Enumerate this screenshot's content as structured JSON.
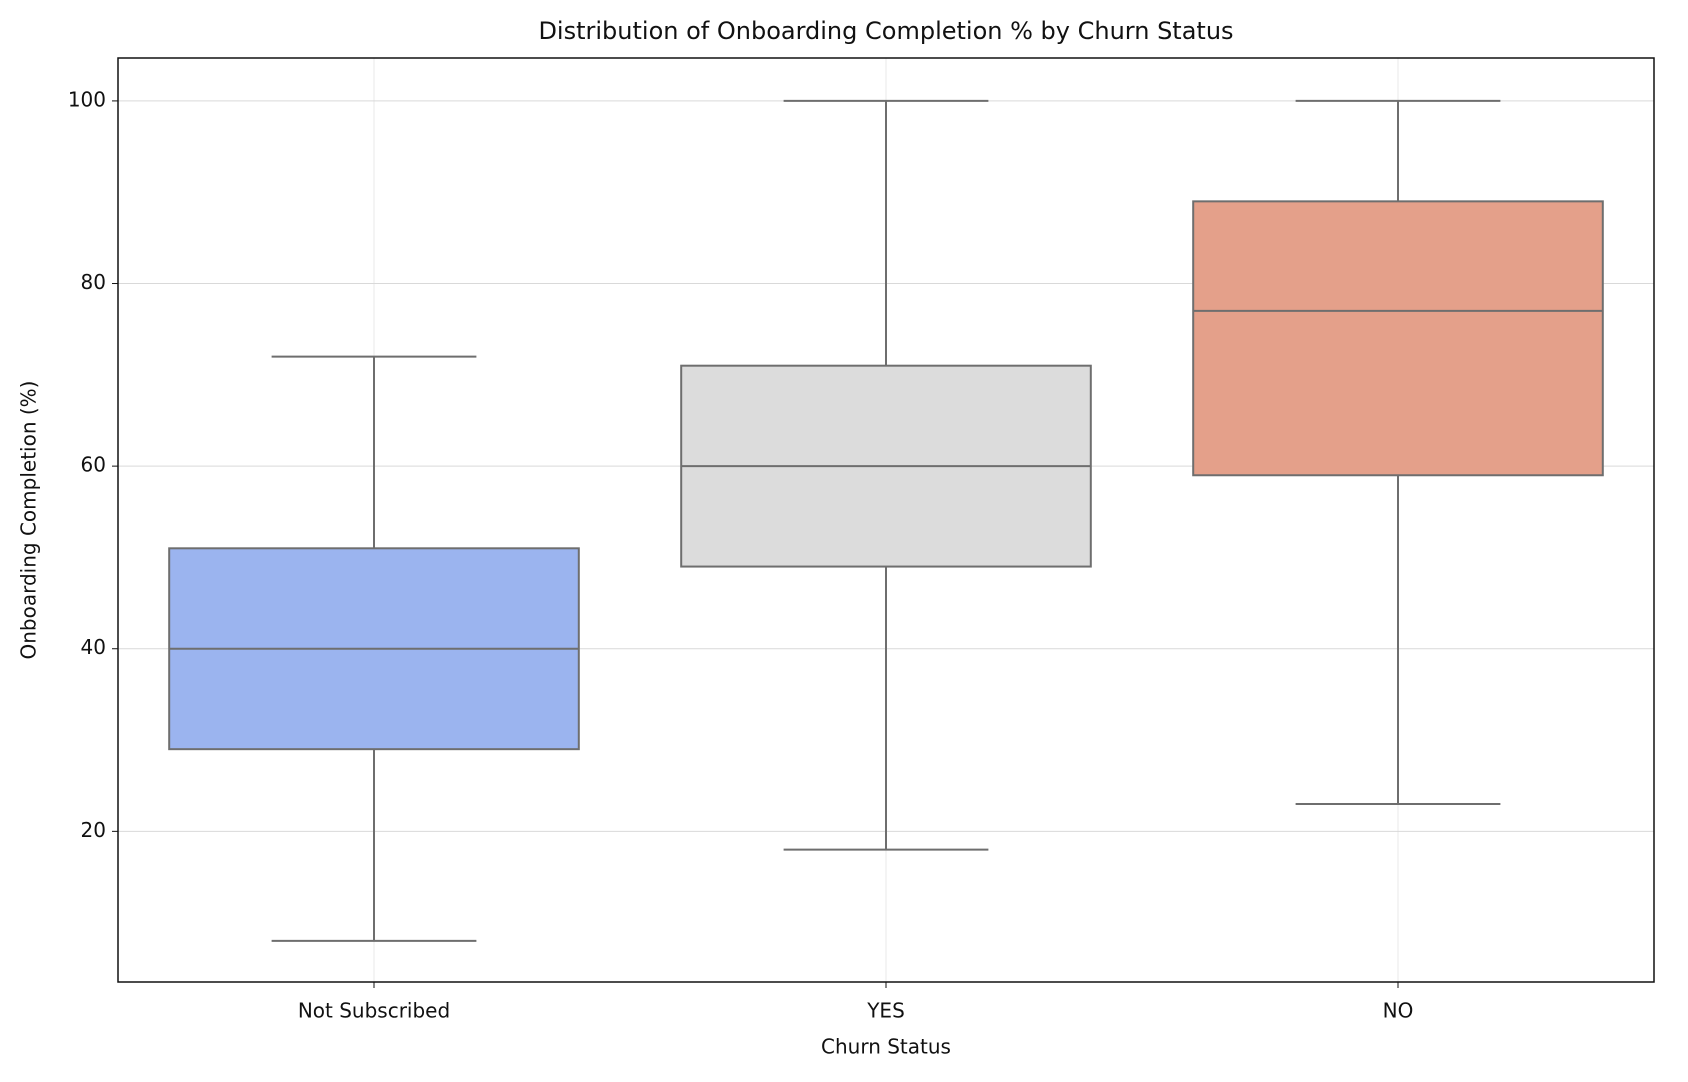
{
  "chart_data": {
    "type": "box",
    "title": "Distribution of Onboarding Completion % by Churn Status",
    "x_label": "Churn Status",
    "y_label": "Onboarding Completion (%)",
    "categories": [
      "Not Subscribed",
      "YES",
      "NO"
    ],
    "boxes": [
      {
        "min": 8,
        "q1": 29,
        "median": 40,
        "q3": 51,
        "max": 72,
        "color": "#9bb4ef"
      },
      {
        "min": 18,
        "q1": 49,
        "median": 60,
        "q3": 71,
        "max": 100,
        "color": "#dcdcdc"
      },
      {
        "min": 23,
        "q1": 59,
        "median": 77,
        "q3": 89,
        "max": 100,
        "color": "#e4a08a"
      }
    ],
    "ylim": [
      3.5,
      104.7
    ],
    "yticks": [
      20,
      40,
      60,
      80,
      100
    ],
    "grid": true
  }
}
